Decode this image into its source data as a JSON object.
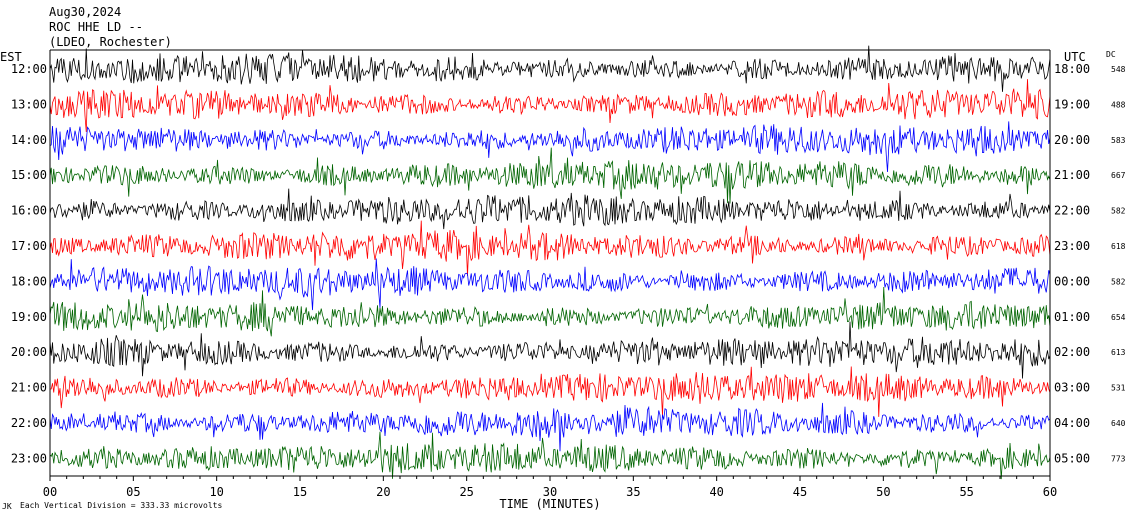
{
  "header": {
    "date": "Aug30,2024",
    "station": "ROC HHE LD --",
    "location": "(LDEO, Rochester)"
  },
  "chart_data": {
    "type": "line",
    "title": "",
    "xlabel": "TIME (MINUTES)",
    "xlim": [
      0,
      60
    ],
    "x_ticks": [
      "00",
      "05",
      "10",
      "15",
      "20",
      "25",
      "30",
      "35",
      "40",
      "45",
      "50",
      "55",
      "60"
    ],
    "left_axis_label": "EST",
    "right_axis_label": "UTC",
    "dc_label": "DC",
    "rows_est": [
      "12:00",
      "13:00",
      "14:00",
      "15:00",
      "16:00",
      "17:00",
      "18:00",
      "19:00",
      "20:00",
      "21:00",
      "22:00",
      "23:00"
    ],
    "rows_utc": [
      "18:00",
      "19:00",
      "20:00",
      "21:00",
      "22:00",
      "23:00",
      "00:00",
      "01:00",
      "02:00",
      "03:00",
      "04:00",
      "05:00"
    ],
    "dc_values": [
      "548",
      "488",
      "583",
      "667",
      "582",
      "618",
      "582",
      "654",
      "613",
      "531",
      "640",
      "773"
    ],
    "trace_colors": [
      "#000000",
      "#ff0000",
      "#0000ff",
      "#006400"
    ],
    "footer": "Each Vertical Division =  333.33 microvolts",
    "footer_mark": "JK",
    "grid": false,
    "legend": "none"
  }
}
